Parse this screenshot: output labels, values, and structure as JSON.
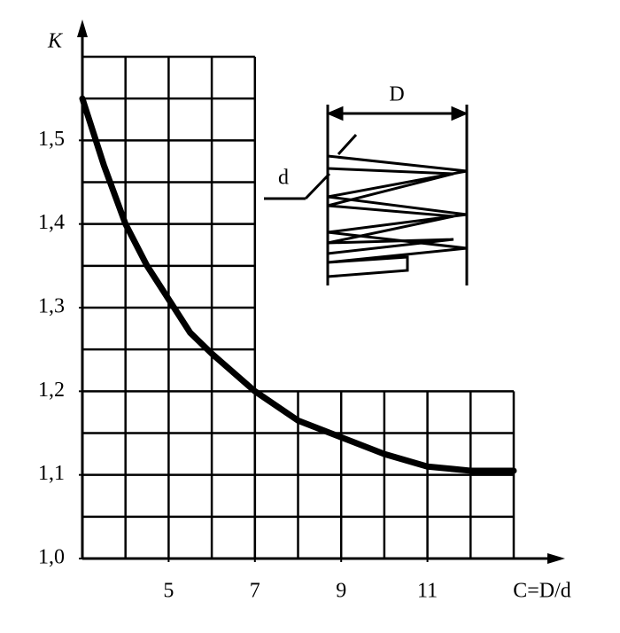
{
  "chart_data": {
    "type": "line",
    "x_label": "C=D/d",
    "y_label": "K",
    "x": [
      3,
      3.5,
      4,
      4.5,
      5,
      5.5,
      6,
      7,
      8,
      9,
      10,
      11,
      12,
      13
    ],
    "series": [
      {
        "name": "K",
        "color": "#000000",
        "values": [
          1.55,
          1.47,
          1.4,
          1.35,
          1.31,
          1.27,
          1.245,
          1.2,
          1.165,
          1.145,
          1.125,
          1.11,
          1.105,
          1.105
        ]
      }
    ],
    "xlim": [
      3,
      13
    ],
    "ylim": [
      1.0,
      1.6
    ],
    "xticks": [
      5,
      7,
      9,
      11
    ],
    "yticks": [
      {
        "value": 1.0,
        "label": "1,0"
      },
      {
        "value": 1.1,
        "label": "1,1"
      },
      {
        "value": 1.2,
        "label": "1,2"
      },
      {
        "value": 1.3,
        "label": "1,3"
      },
      {
        "value": 1.4,
        "label": "1,4"
      },
      {
        "value": 1.5,
        "label": "1,5"
      }
    ],
    "grid": true,
    "grid_blocks": [
      {
        "xlim": [
          3,
          7
        ],
        "ylim": [
          1.0,
          1.6
        ]
      },
      {
        "xlim": [
          7,
          13
        ],
        "ylim": [
          1.0,
          1.2
        ]
      }
    ],
    "grid_step_x": 1,
    "grid_step_y": 0.05,
    "inset_labels": [
      "D",
      "d"
    ]
  }
}
